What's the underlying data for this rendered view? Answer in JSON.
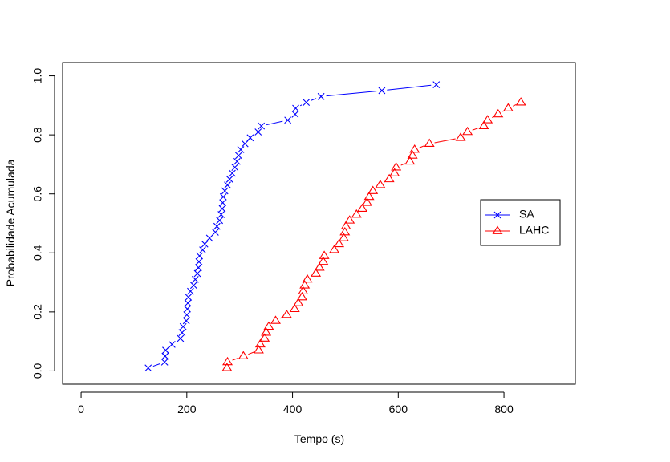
{
  "chart_data": {
    "type": "line",
    "title": "",
    "xlabel": "Tempo (s)",
    "ylabel": "Probabilidade Acumulada",
    "xlim": [
      -35,
      935
    ],
    "ylim": [
      -0.045,
      1.045
    ],
    "x_ticks": [
      "0",
      "200",
      "400",
      "600",
      "800"
    ],
    "y_ticks": [
      "0.0",
      "0.2",
      "0.4",
      "0.6",
      "0.8",
      "1.0"
    ],
    "grid": false,
    "legend_position": "right",
    "series": [
      {
        "name": "SA",
        "color": "#0000ff",
        "marker": "x",
        "points": [
          [
            127,
            0.01
          ],
          [
            158,
            0.03
          ],
          [
            159,
            0.05
          ],
          [
            160,
            0.07
          ],
          [
            172,
            0.09
          ],
          [
            188,
            0.11
          ],
          [
            191,
            0.13
          ],
          [
            193,
            0.15
          ],
          [
            199,
            0.17
          ],
          [
            200,
            0.19
          ],
          [
            201,
            0.21
          ],
          [
            202,
            0.23
          ],
          [
            203,
            0.25
          ],
          [
            207,
            0.27
          ],
          [
            213,
            0.29
          ],
          [
            216,
            0.31
          ],
          [
            220,
            0.33
          ],
          [
            222,
            0.35
          ],
          [
            223,
            0.37
          ],
          [
            224,
            0.39
          ],
          [
            230,
            0.41
          ],
          [
            234,
            0.43
          ],
          [
            243,
            0.45
          ],
          [
            254,
            0.47
          ],
          [
            257,
            0.49
          ],
          [
            262,
            0.51
          ],
          [
            265,
            0.53
          ],
          [
            267,
            0.55
          ],
          [
            268,
            0.57
          ],
          [
            269,
            0.59
          ],
          [
            272,
            0.61
          ],
          [
            277,
            0.63
          ],
          [
            281,
            0.65
          ],
          [
            286,
            0.67
          ],
          [
            291,
            0.69
          ],
          [
            295,
            0.71
          ],
          [
            298,
            0.73
          ],
          [
            302,
            0.75
          ],
          [
            310,
            0.77
          ],
          [
            320,
            0.79
          ],
          [
            335,
            0.81
          ],
          [
            341,
            0.83
          ],
          [
            391,
            0.85
          ],
          [
            405,
            0.87
          ],
          [
            406,
            0.89
          ],
          [
            426,
            0.91
          ],
          [
            454,
            0.93
          ],
          [
            569,
            0.95
          ],
          [
            672,
            0.97
          ]
        ]
      },
      {
        "name": "LAHC",
        "color": "#ff0000",
        "marker": "triangle",
        "points": [
          [
            276,
            0.01
          ],
          [
            277,
            0.03
          ],
          [
            307,
            0.05
          ],
          [
            336,
            0.07
          ],
          [
            339,
            0.09
          ],
          [
            347,
            0.11
          ],
          [
            350,
            0.13
          ],
          [
            355,
            0.15
          ],
          [
            368,
            0.17
          ],
          [
            389,
            0.19
          ],
          [
            404,
            0.21
          ],
          [
            411,
            0.23
          ],
          [
            418,
            0.25
          ],
          [
            420,
            0.27
          ],
          [
            423,
            0.29
          ],
          [
            428,
            0.31
          ],
          [
            444,
            0.33
          ],
          [
            451,
            0.35
          ],
          [
            458,
            0.37
          ],
          [
            460,
            0.39
          ],
          [
            479,
            0.41
          ],
          [
            488,
            0.43
          ],
          [
            497,
            0.45
          ],
          [
            499,
            0.47
          ],
          [
            501,
            0.49
          ],
          [
            508,
            0.51
          ],
          [
            521,
            0.53
          ],
          [
            532,
            0.55
          ],
          [
            541,
            0.57
          ],
          [
            545,
            0.59
          ],
          [
            552,
            0.61
          ],
          [
            566,
            0.63
          ],
          [
            583,
            0.65
          ],
          [
            593,
            0.67
          ],
          [
            596,
            0.69
          ],
          [
            622,
            0.71
          ],
          [
            627,
            0.73
          ],
          [
            631,
            0.75
          ],
          [
            659,
            0.77
          ],
          [
            718,
            0.79
          ],
          [
            731,
            0.81
          ],
          [
            762,
            0.83
          ],
          [
            769,
            0.85
          ],
          [
            789,
            0.87
          ],
          [
            808,
            0.89
          ],
          [
            832,
            0.91
          ]
        ]
      }
    ]
  }
}
